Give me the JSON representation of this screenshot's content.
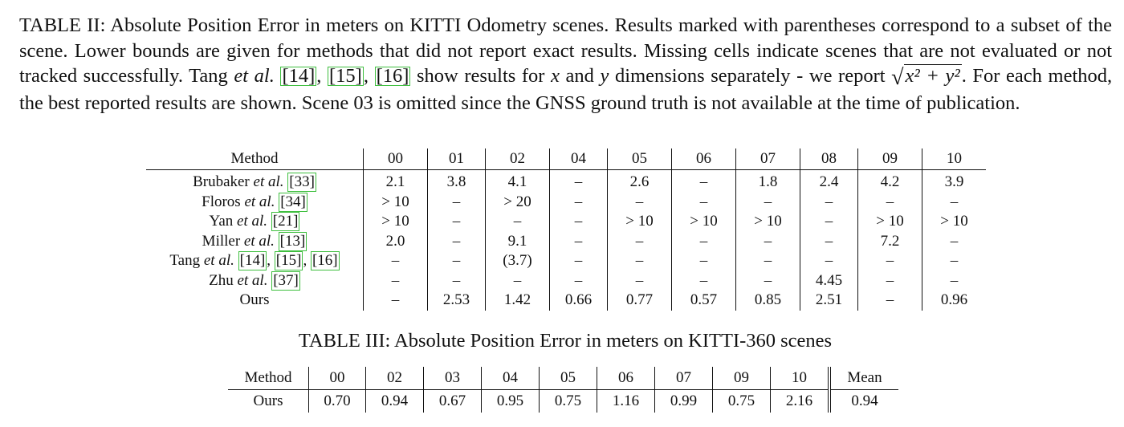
{
  "table2": {
    "caption": {
      "label": "TABLE II:",
      "part1": "Absolute Position Error in meters on KITTI Odometry scenes. Results marked with parentheses correspond to a subset of the scene. Lower bounds are given for methods that did not report exact results. Missing cells indicate scenes that are not evaluated or not tracked successfully. Tang",
      "et_al": "et al.",
      "refs": [
        "[14]",
        "[15]",
        "[16]"
      ],
      "part2": "show results for",
      "var_x": "x",
      "and": "and",
      "var_y": "y",
      "part3": "dimensions separately - we report",
      "sqrt_expr": "x² + y²",
      "part4": ". For each method, the best reported results are shown. Scene 03 is omitted since the GNSS ground truth is not available at the time of publication."
    },
    "header": [
      "Method",
      "00",
      "01",
      "02",
      "04",
      "05",
      "06",
      "07",
      "08",
      "09",
      "10"
    ],
    "rows": [
      {
        "name": "Brubaker",
        "refs": [
          "[33]"
        ],
        "cells": [
          "2.1",
          "3.8",
          "4.1",
          "–",
          "2.6",
          "–",
          "1.8",
          "2.4",
          "4.2",
          "3.9"
        ],
        "bold": [
          7,
          8
        ]
      },
      {
        "name": "Floros",
        "refs": [
          "[34]"
        ],
        "cells": [
          "> 10",
          "–",
          "> 20",
          "–",
          "–",
          "–",
          "–",
          "–",
          "–",
          "–"
        ],
        "bold": []
      },
      {
        "name": "Yan",
        "refs": [
          "[21]"
        ],
        "cells": [
          "> 10",
          "–",
          "–",
          "–",
          "> 10",
          "> 10",
          "> 10",
          "–",
          "> 10",
          "> 10"
        ],
        "bold": []
      },
      {
        "name": "Miller",
        "refs": [
          "[13]"
        ],
        "cells": [
          "2.0",
          "–",
          "9.1",
          "–",
          "–",
          "–",
          "–",
          "–",
          "7.2",
          "–"
        ],
        "bold": [
          0
        ]
      },
      {
        "name": "Tang",
        "refs": [
          "[14]",
          "[15]",
          "[16]"
        ],
        "cells": [
          "–",
          "–",
          "(3.7)",
          "–",
          "–",
          "–",
          "–",
          "–",
          "–",
          "–"
        ],
        "bold": []
      },
      {
        "name": "Zhu",
        "refs": [
          "[37]"
        ],
        "cells": [
          "–",
          "–",
          "–",
          "–",
          "–",
          "–",
          "–",
          "4.45",
          "–",
          "–"
        ],
        "bold": []
      },
      {
        "name": "Ours",
        "refs": [],
        "cells": [
          "–",
          "2.53",
          "1.42",
          "0.66",
          "0.77",
          "0.57",
          "0.85",
          "2.51",
          "–",
          "0.96"
        ],
        "bold": [
          1,
          2,
          3,
          4,
          5,
          6,
          9
        ],
        "name_bold": true
      }
    ],
    "et_al": "et al."
  },
  "table3": {
    "caption": "TABLE III: Absolute Position Error in meters on KITTI-360 scenes",
    "header": [
      "Method",
      "00",
      "02",
      "03",
      "04",
      "05",
      "06",
      "07",
      "09",
      "10",
      "Mean"
    ],
    "row": {
      "name": "Ours",
      "cells": [
        "0.70",
        "0.94",
        "0.67",
        "0.95",
        "0.75",
        "1.16",
        "0.99",
        "0.75",
        "2.16",
        "0.94"
      ]
    }
  }
}
